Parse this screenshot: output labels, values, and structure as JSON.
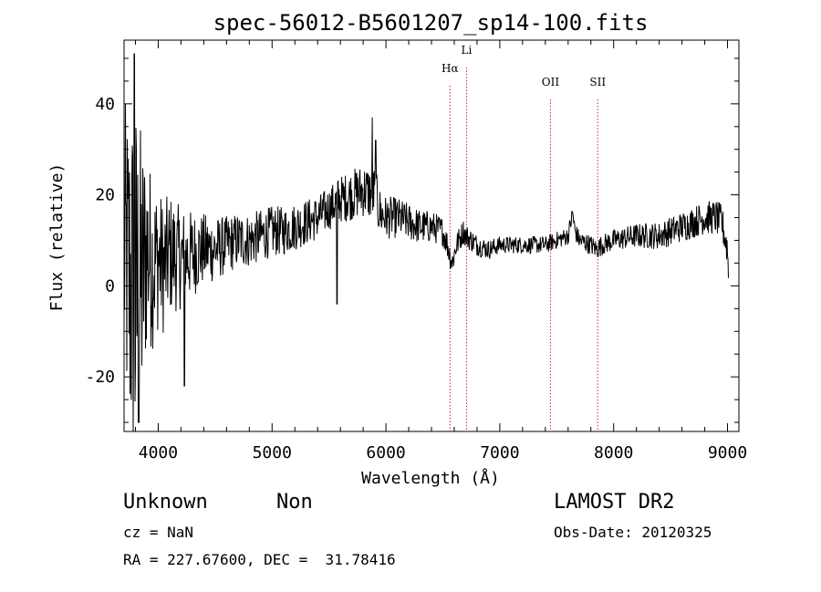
{
  "chart_data": {
    "type": "line",
    "title": "spec-56012-B5601207_sp14-100.fits",
    "xlabel": "Wavelength (Å)",
    "ylabel": "Flux (relative)",
    "xlim": [
      3700,
      9100
    ],
    "ylim": [
      -32,
      54
    ],
    "x_ticks": [
      4000,
      5000,
      6000,
      7000,
      8000,
      9000
    ],
    "y_ticks": [
      -20,
      0,
      20,
      40
    ],
    "x_minor_step": 200,
    "y_minor_step": 5,
    "grid": false,
    "line_color": "#000000",
    "marker_color": "#cc2222",
    "spectrum_anchors": [
      [
        3700,
        8
      ],
      [
        3760,
        0
      ],
      [
        3800,
        -5
      ],
      [
        3850,
        0
      ],
      [
        3900,
        8
      ],
      [
        3950,
        5
      ],
      [
        4000,
        6
      ],
      [
        4050,
        4
      ],
      [
        4100,
        7
      ],
      [
        4200,
        6
      ],
      [
        4300,
        7
      ],
      [
        4400,
        8
      ],
      [
        4500,
        8
      ],
      [
        4600,
        9
      ],
      [
        4700,
        10
      ],
      [
        4800,
        10
      ],
      [
        4900,
        11
      ],
      [
        5000,
        12
      ],
      [
        5100,
        12
      ],
      [
        5200,
        13
      ],
      [
        5300,
        14
      ],
      [
        5400,
        15
      ],
      [
        5500,
        17
      ],
      [
        5550,
        18
      ],
      [
        5600,
        19
      ],
      [
        5700,
        20
      ],
      [
        5800,
        21
      ],
      [
        5900,
        20
      ],
      [
        5950,
        16
      ],
      [
        6000,
        15
      ],
      [
        6100,
        15
      ],
      [
        6200,
        14
      ],
      [
        6300,
        13
      ],
      [
        6400,
        13
      ],
      [
        6500,
        12
      ],
      [
        6540,
        9
      ],
      [
        6560,
        7
      ],
      [
        6580,
        5
      ],
      [
        6620,
        9
      ],
      [
        6680,
        12
      ],
      [
        6700,
        11
      ],
      [
        6800,
        9
      ],
      [
        6900,
        8
      ],
      [
        7000,
        9
      ],
      [
        7200,
        9
      ],
      [
        7400,
        9
      ],
      [
        7500,
        10
      ],
      [
        7600,
        11
      ],
      [
        7640,
        16
      ],
      [
        7660,
        12
      ],
      [
        7700,
        10
      ],
      [
        7800,
        9
      ],
      [
        7850,
        8
      ],
      [
        7900,
        9
      ],
      [
        8000,
        10
      ],
      [
        8200,
        11
      ],
      [
        8400,
        11
      ],
      [
        8500,
        12
      ],
      [
        8600,
        13
      ],
      [
        8700,
        14
      ],
      [
        8800,
        15
      ],
      [
        8900,
        15
      ],
      [
        8950,
        14
      ],
      [
        9000,
        8
      ],
      [
        9010,
        1
      ]
    ],
    "noise_profile": [
      [
        3700,
        20
      ],
      [
        3800,
        30
      ],
      [
        3900,
        14
      ],
      [
        4000,
        10
      ],
      [
        4200,
        7
      ],
      [
        4400,
        5
      ],
      [
        4600,
        4
      ],
      [
        5000,
        3.5
      ],
      [
        5500,
        3
      ],
      [
        5900,
        4
      ],
      [
        6000,
        3
      ],
      [
        6500,
        2
      ],
      [
        7000,
        1.2
      ],
      [
        7500,
        1.2
      ],
      [
        8000,
        1.5
      ],
      [
        8500,
        2
      ],
      [
        9000,
        2.5
      ]
    ],
    "spikes": [
      [
        5570,
        -4
      ],
      [
        5880,
        37
      ],
      [
        5910,
        32
      ],
      [
        5580,
        23
      ],
      [
        4230,
        -22
      ],
      [
        3830,
        -30
      ],
      [
        3790,
        51
      ]
    ],
    "line_markers": [
      {
        "wavelength": 6563,
        "label": "Hα",
        "label_y": 47
      },
      {
        "wavelength": 6708,
        "label": "Li",
        "label_y": 51
      },
      {
        "wavelength": 7445,
        "label": "OII",
        "label_y": 44
      },
      {
        "wavelength": 7860,
        "label": "SII",
        "label_y": 44
      }
    ]
  },
  "footer": {
    "object_class": "Unknown",
    "object_subclass": "Non",
    "survey": "LAMOST DR2",
    "cz": "cz = NaN",
    "obs_date": "Obs-Date: 20120325",
    "coords": "RA = 227.67600, DEC =  31.78416"
  }
}
